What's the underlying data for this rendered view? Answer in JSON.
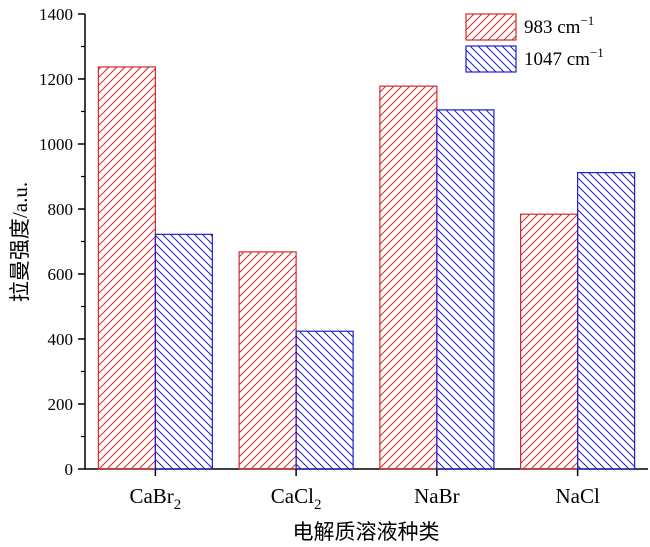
{
  "chart_data": {
    "type": "bar",
    "categories": [
      "CaBr",
      "CaCl",
      "NaBr",
      "NaCl"
    ],
    "category_subscripts": [
      "2",
      "2",
      "",
      ""
    ],
    "series": [
      {
        "name": "983 cm",
        "name_sup": "−1",
        "color": "#d62728",
        "pattern": "hatch-forward",
        "values": [
          1237,
          668,
          1178,
          784
        ]
      },
      {
        "name": "1047 cm",
        "name_sup": "−1",
        "color": "#1f1fcc",
        "pattern": "hatch-back",
        "values": [
          722,
          424,
          1105,
          912
        ]
      }
    ],
    "xlabel": "电解质溶液种类",
    "ylabel": "拉曼强度/a.u.",
    "ylim": [
      0,
      1400
    ],
    "yticks": [
      0,
      200,
      400,
      600,
      800,
      1000,
      1200,
      1400
    ],
    "legend_position": "top-right",
    "grid": false
  }
}
